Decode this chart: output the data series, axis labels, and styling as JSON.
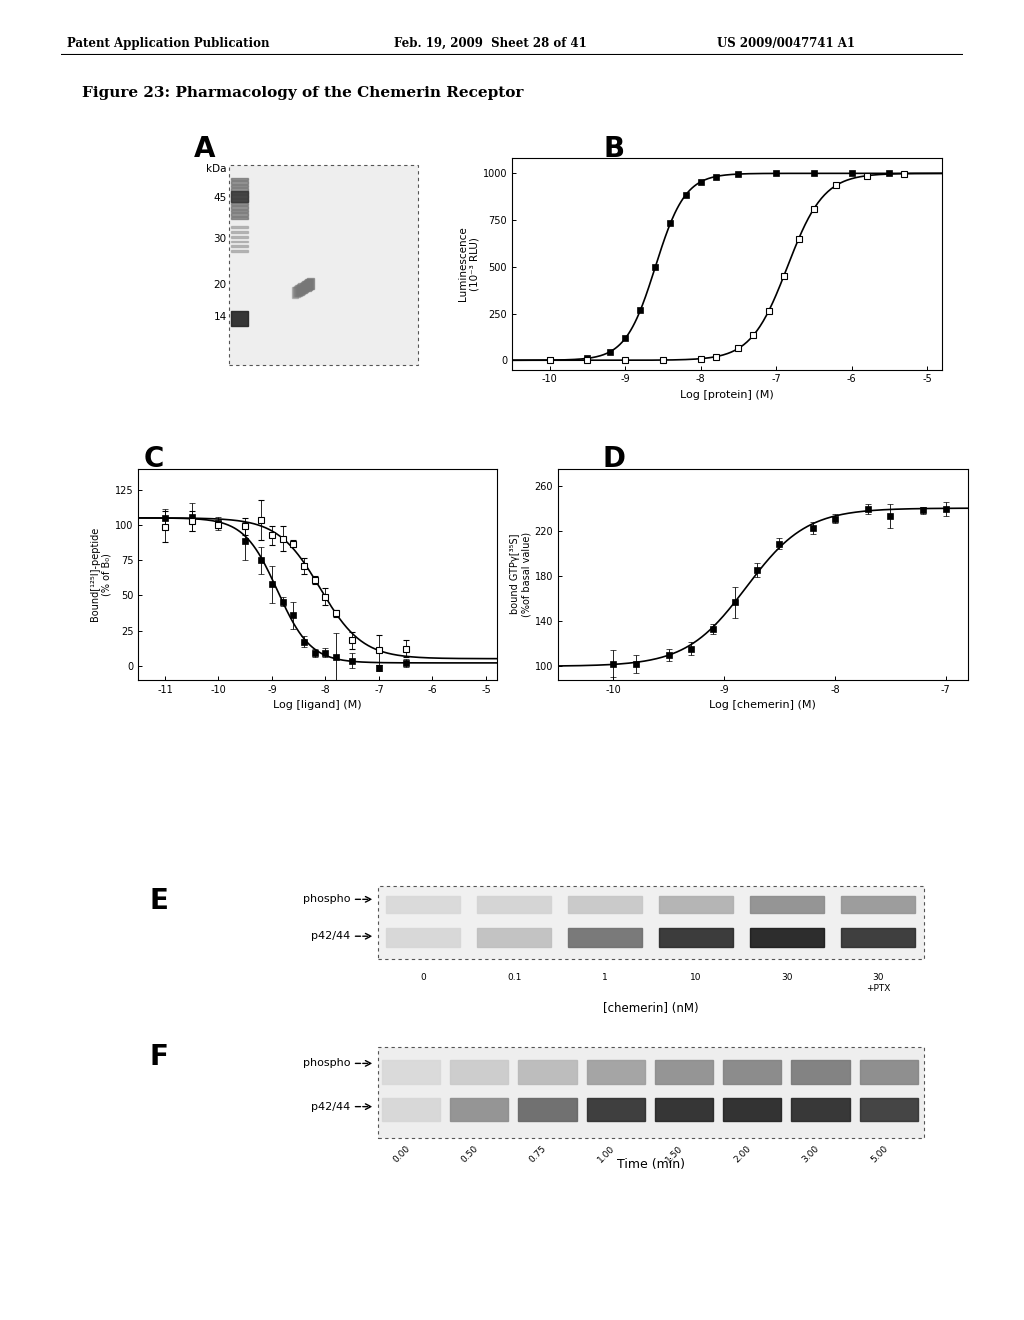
{
  "title": "Figure 23: Pharmacology of the Chemerin Receptor",
  "header_left": "Patent Application Publication",
  "header_center": "Feb. 19, 2009  Sheet 28 of 41",
  "header_right": "US 2009/0047741 A1",
  "panel_B": {
    "xlabel": "Log [protein] (M)",
    "ylabel": "Luminescence\n(10⁻³ RLU)",
    "xticks": [
      -10,
      -9,
      -8,
      -7,
      -6,
      -5
    ],
    "yticks": [
      0,
      250,
      500,
      750,
      1000
    ],
    "xlim": [
      -10.5,
      -4.8
    ],
    "ylim": [
      -50,
      1080
    ]
  },
  "panel_C": {
    "xlabel": "Log [ligand] (M)",
    "ylabel": "Bound[¹²⁵I]-peptide\n(% of B₀)",
    "xticks": [
      -11,
      -10,
      -9,
      -8,
      -7,
      -6,
      -5
    ],
    "yticks": [
      0,
      25,
      50,
      75,
      100,
      125
    ],
    "xlim": [
      -11.5,
      -4.8
    ],
    "ylim": [
      -10,
      140
    ]
  },
  "panel_D": {
    "xlabel": "Log [chemerin] (M)",
    "ylabel": "bound GTPγ[³⁵S]\n(%of basal value)",
    "xticks": [
      -10,
      -9,
      -8,
      -7
    ],
    "yticks": [
      100,
      140,
      180,
      220,
      260
    ],
    "xlim": [
      -10.5,
      -6.8
    ],
    "ylim": [
      88,
      275
    ]
  },
  "panel_E": {
    "lanes": [
      "0",
      "0.1",
      "1",
      "10",
      "30",
      "30\n+PTX"
    ],
    "label_top": "phospho",
    "label_bottom": "p42/44",
    "xlabel": "[chemerin] (nM)"
  },
  "panel_F": {
    "lanes": [
      "0.00",
      "0.50",
      "0.75",
      "1.00",
      "1.50",
      "2.00",
      "3.00",
      "5.00"
    ],
    "label_top": "phospho",
    "label_bottom": "p42/44",
    "xlabel": "Time (min)"
  },
  "bg_color": "#ffffff"
}
